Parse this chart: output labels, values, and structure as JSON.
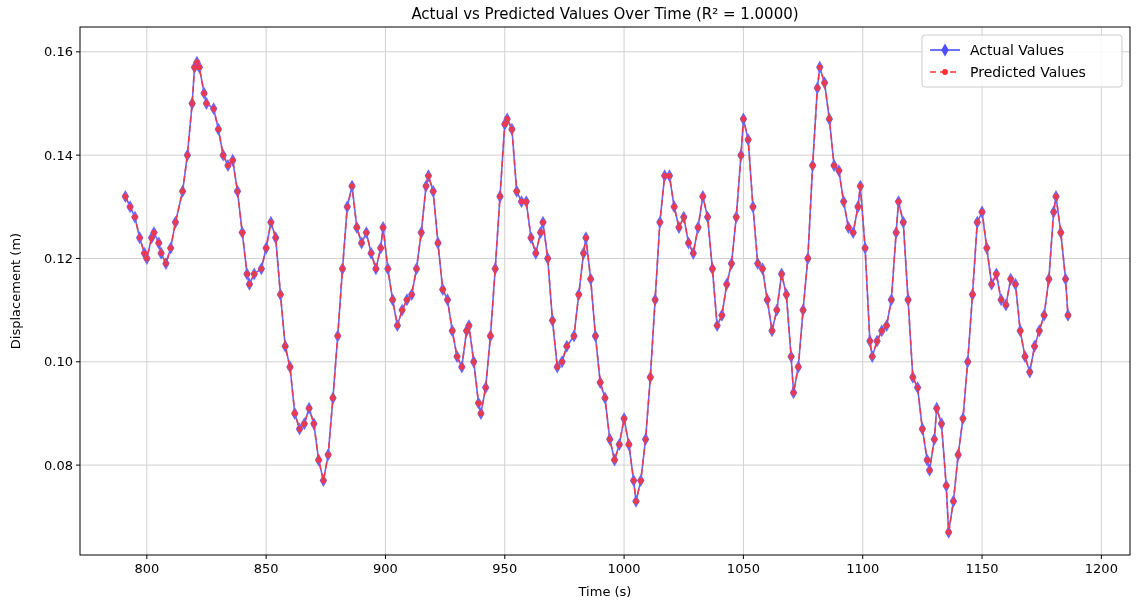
{
  "chart_data": {
    "type": "line",
    "title": "Actual vs Predicted Values Over Time (R² = 1.0000)",
    "xlabel": "Time (s)",
    "ylabel": "Displacement (m)",
    "x": [
      791,
      793,
      795,
      797,
      799,
      800,
      802,
      803,
      805,
      806,
      808,
      810,
      812,
      815,
      817,
      819,
      820,
      821,
      822,
      824,
      825,
      828,
      830,
      832,
      834,
      836,
      838,
      840,
      842,
      843,
      845,
      848,
      850,
      852,
      854,
      856,
      858,
      860,
      862,
      864,
      866,
      868,
      870,
      872,
      874,
      876,
      878,
      880,
      882,
      884,
      886,
      888,
      890,
      892,
      894,
      896,
      898,
      899,
      901,
      903,
      905,
      907,
      909,
      911,
      913,
      915,
      917,
      918,
      920,
      922,
      924,
      926,
      928,
      930,
      932,
      934,
      935,
      937,
      939,
      940,
      942,
      944,
      946,
      948,
      950,
      951,
      953,
      955,
      957,
      959,
      961,
      963,
      965,
      966,
      968,
      970,
      972,
      974,
      976,
      979,
      981,
      983,
      984,
      986,
      988,
      990,
      992,
      994,
      996,
      998,
      1000,
      1002,
      1004,
      1005,
      1007,
      1009,
      1011,
      1013,
      1015,
      1017,
      1019,
      1021,
      1023,
      1025,
      1027,
      1029,
      1031,
      1033,
      1035,
      1037,
      1039,
      1041,
      1043,
      1045,
      1047,
      1049,
      1050,
      1052,
      1054,
      1056,
      1058,
      1060,
      1062,
      1064,
      1066,
      1068,
      1070,
      1071,
      1073,
      1075,
      1077,
      1079,
      1081,
      1082,
      1084,
      1086,
      1088,
      1090,
      1092,
      1094,
      1096,
      1098,
      1099,
      1101,
      1103,
      1104,
      1106,
      1108,
      1110,
      1112,
      1114,
      1115,
      1117,
      1119,
      1121,
      1123,
      1125,
      1127,
      1128,
      1130,
      1131,
      1133,
      1135,
      1136,
      1138,
      1140,
      1142,
      1144,
      1146,
      1148,
      1150,
      1152,
      1154,
      1156,
      1158,
      1160,
      1162,
      1164,
      1166,
      1168,
      1170,
      1172,
      1174,
      1176,
      1178,
      1180,
      1181,
      1183,
      1185,
      1186
    ],
    "series": [
      {
        "name": "Actual Values",
        "color": "#4d4dff",
        "marker": "diamond",
        "line_style": "solid",
        "values": [
          0.132,
          0.13,
          0.128,
          0.124,
          0.121,
          0.12,
          0.124,
          0.125,
          0.123,
          0.121,
          0.119,
          0.122,
          0.127,
          0.133,
          0.14,
          0.15,
          0.157,
          0.158,
          0.157,
          0.152,
          0.15,
          0.149,
          0.145,
          0.14,
          0.138,
          0.139,
          0.133,
          0.125,
          0.117,
          0.115,
          0.117,
          0.118,
          0.122,
          0.127,
          0.124,
          0.113,
          0.103,
          0.099,
          0.09,
          0.087,
          0.088,
          0.091,
          0.088,
          0.081,
          0.077,
          0.082,
          0.093,
          0.105,
          0.118,
          0.13,
          0.134,
          0.126,
          0.123,
          0.125,
          0.121,
          0.118,
          0.122,
          0.126,
          0.118,
          0.112,
          0.107,
          0.11,
          0.112,
          0.113,
          0.118,
          0.125,
          0.134,
          0.136,
          0.133,
          0.123,
          0.114,
          0.112,
          0.106,
          0.101,
          0.099,
          0.106,
          0.107,
          0.1,
          0.092,
          0.09,
          0.095,
          0.105,
          0.118,
          0.132,
          0.146,
          0.147,
          0.145,
          0.133,
          0.131,
          0.131,
          0.124,
          0.121,
          0.125,
          0.127,
          0.12,
          0.108,
          0.099,
          0.1,
          0.103,
          0.105,
          0.113,
          0.121,
          0.124,
          0.116,
          0.105,
          0.096,
          0.093,
          0.085,
          0.081,
          0.084,
          0.089,
          0.084,
          0.077,
          0.073,
          0.077,
          0.085,
          0.097,
          0.112,
          0.127,
          0.136,
          0.136,
          0.13,
          0.126,
          0.128,
          0.123,
          0.121,
          0.126,
          0.132,
          0.128,
          0.118,
          0.107,
          0.109,
          0.115,
          0.119,
          0.128,
          0.14,
          0.147,
          0.143,
          0.13,
          0.119,
          0.118,
          0.112,
          0.106,
          0.11,
          0.117,
          0.113,
          0.101,
          0.094,
          0.099,
          0.11,
          0.12,
          0.138,
          0.153,
          0.157,
          0.154,
          0.147,
          0.138,
          0.137,
          0.131,
          0.126,
          0.125,
          0.13,
          0.134,
          0.122,
          0.104,
          0.101,
          0.104,
          0.106,
          0.107,
          0.112,
          0.125,
          0.131,
          0.127,
          0.112,
          0.097,
          0.095,
          0.087,
          0.081,
          0.079,
          0.085,
          0.091,
          0.088,
          0.076,
          0.067,
          0.073,
          0.082,
          0.089,
          0.1,
          0.113,
          0.127,
          0.129,
          0.122,
          0.115,
          0.117,
          0.112,
          0.111,
          0.116,
          0.115,
          0.106,
          0.101,
          0.098,
          0.103,
          0.106,
          0.109,
          0.116,
          0.129,
          0.132,
          0.125,
          0.116,
          0.109
        ]
      },
      {
        "name": "Predicted Values",
        "color": "#ff3333",
        "marker": "circle",
        "line_style": "dashed",
        "values": [
          0.132,
          0.13,
          0.128,
          0.124,
          0.121,
          0.12,
          0.124,
          0.125,
          0.123,
          0.121,
          0.119,
          0.122,
          0.127,
          0.133,
          0.14,
          0.15,
          0.157,
          0.158,
          0.157,
          0.152,
          0.15,
          0.149,
          0.145,
          0.14,
          0.138,
          0.139,
          0.133,
          0.125,
          0.117,
          0.115,
          0.117,
          0.118,
          0.122,
          0.127,
          0.124,
          0.113,
          0.103,
          0.099,
          0.09,
          0.087,
          0.088,
          0.091,
          0.088,
          0.081,
          0.077,
          0.082,
          0.093,
          0.105,
          0.118,
          0.13,
          0.134,
          0.126,
          0.123,
          0.125,
          0.121,
          0.118,
          0.122,
          0.126,
          0.118,
          0.112,
          0.107,
          0.11,
          0.112,
          0.113,
          0.118,
          0.125,
          0.134,
          0.136,
          0.133,
          0.123,
          0.114,
          0.112,
          0.106,
          0.101,
          0.099,
          0.106,
          0.107,
          0.1,
          0.092,
          0.09,
          0.095,
          0.105,
          0.118,
          0.132,
          0.146,
          0.147,
          0.145,
          0.133,
          0.131,
          0.131,
          0.124,
          0.121,
          0.125,
          0.127,
          0.12,
          0.108,
          0.099,
          0.1,
          0.103,
          0.105,
          0.113,
          0.121,
          0.124,
          0.116,
          0.105,
          0.096,
          0.093,
          0.085,
          0.081,
          0.084,
          0.089,
          0.084,
          0.077,
          0.073,
          0.077,
          0.085,
          0.097,
          0.112,
          0.127,
          0.136,
          0.136,
          0.13,
          0.126,
          0.128,
          0.123,
          0.121,
          0.126,
          0.132,
          0.128,
          0.118,
          0.107,
          0.109,
          0.115,
          0.119,
          0.128,
          0.14,
          0.147,
          0.143,
          0.13,
          0.119,
          0.118,
          0.112,
          0.106,
          0.11,
          0.117,
          0.113,
          0.101,
          0.094,
          0.099,
          0.11,
          0.12,
          0.138,
          0.153,
          0.157,
          0.154,
          0.147,
          0.138,
          0.137,
          0.131,
          0.126,
          0.125,
          0.13,
          0.134,
          0.122,
          0.104,
          0.101,
          0.104,
          0.106,
          0.107,
          0.112,
          0.125,
          0.131,
          0.127,
          0.112,
          0.097,
          0.095,
          0.087,
          0.081,
          0.079,
          0.085,
          0.091,
          0.088,
          0.076,
          0.067,
          0.073,
          0.082,
          0.089,
          0.1,
          0.113,
          0.127,
          0.129,
          0.122,
          0.115,
          0.117,
          0.112,
          0.111,
          0.116,
          0.115,
          0.106,
          0.101,
          0.098,
          0.103,
          0.106,
          0.109,
          0.116,
          0.129,
          0.132,
          0.125,
          0.116,
          0.109
        ]
      }
    ],
    "xlim": [
      772,
      1212
    ],
    "xticks": [
      800,
      850,
      900,
      950,
      1000,
      1050,
      1100,
      1150,
      1200
    ],
    "ylim": [
      0.0626,
      0.1648
    ],
    "yticks": [
      0.08,
      {
        "value": 0.1,
        "label": "0.10"
      },
      0.12,
      0.14,
      0.16
    ],
    "grid": true,
    "legend": "top right"
  }
}
